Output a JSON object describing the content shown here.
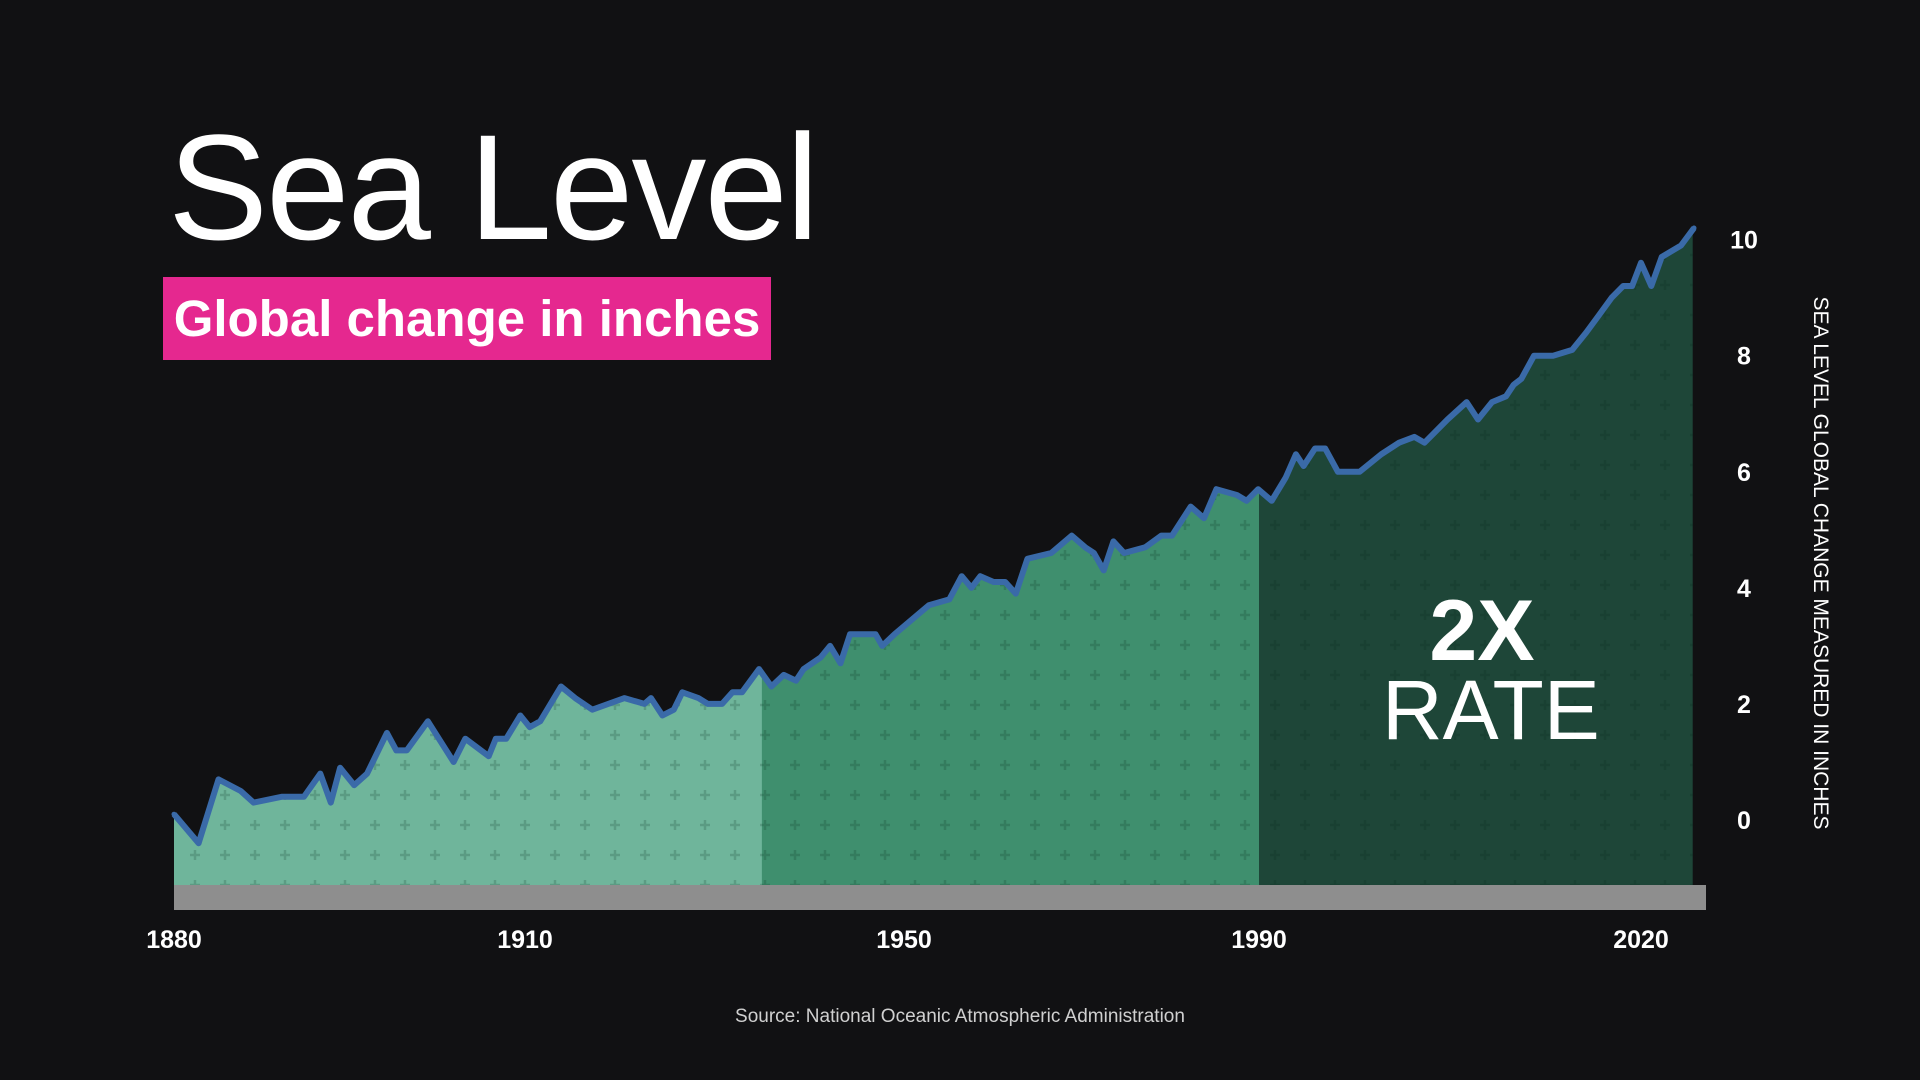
{
  "title": "Sea Level",
  "subtitle": "Global change in inches",
  "annotation": {
    "big": "2X",
    "small": "RATE"
  },
  "source": "Source: National Oceanic Atmospheric Administration",
  "colors": {
    "background": "#111113",
    "line": "#3a6aa8",
    "region_early": "#6fb59b",
    "region_mid": "#3f8f6e",
    "region_recent": "#1e4638",
    "baseline": "#8e8e8e",
    "subtitle_bg": "#e5288f"
  },
  "chart_data": {
    "type": "area",
    "title": "Sea Level",
    "subtitle": "Global change in inches",
    "ylabel": "SEA LEVEL GLOBAL CHANGE MEASURED IN INCHES",
    "xlabel": "",
    "y_axis_side": "right",
    "x_ticks": [
      1880,
      1910,
      1950,
      1990,
      2020
    ],
    "y_ticks": [
      0,
      2,
      4,
      6,
      8,
      10
    ],
    "xlim": [
      1880,
      2024
    ],
    "ylim": [
      -1.8,
      10.5
    ],
    "grid": false,
    "regions": [
      {
        "from": 1880,
        "to": 1935,
        "color": "#6fb59b"
      },
      {
        "from": 1935,
        "to": 1990,
        "color": "#3f8f6e"
      },
      {
        "from": 1990,
        "to": 2024,
        "color": "#1e4638",
        "label": "2X RATE"
      }
    ],
    "series": [
      {
        "points": [
          [
            1880.0,
            0.1
          ],
          [
            1882.1,
            -0.4
          ],
          [
            1883.8,
            0.7
          ],
          [
            1885.7,
            0.5
          ],
          [
            1886.8,
            0.3
          ],
          [
            1889.2,
            0.4
          ],
          [
            1890.2,
            0.4
          ],
          [
            1891.1,
            0.4
          ],
          [
            1892.5,
            0.8
          ],
          [
            1893.4,
            0.3
          ],
          [
            1894.2,
            0.9
          ],
          [
            1895.4,
            0.6
          ],
          [
            1896.5,
            0.8
          ],
          [
            1898.2,
            1.5
          ],
          [
            1899.0,
            1.2
          ],
          [
            1899.9,
            1.2
          ],
          [
            1901.7,
            1.7
          ],
          [
            1903.9,
            1.0
          ],
          [
            1904.9,
            1.4
          ],
          [
            1906.9,
            1.1
          ],
          [
            1907.5,
            1.4
          ],
          [
            1908.4,
            1.4
          ],
          [
            1909.6,
            1.8
          ],
          [
            1910.5,
            1.6
          ],
          [
            1911.6,
            1.7
          ],
          [
            1913.8,
            2.3
          ],
          [
            1915.3,
            2.1
          ],
          [
            1917.1,
            1.9
          ],
          [
            1920.5,
            2.1
          ],
          [
            1922.6,
            2.0
          ],
          [
            1923.3,
            2.1
          ],
          [
            1924.5,
            1.8
          ],
          [
            1925.7,
            1.9
          ],
          [
            1926.6,
            2.2
          ],
          [
            1928.3,
            2.1
          ],
          [
            1929.3,
            2.0
          ],
          [
            1930.8,
            2.0
          ],
          [
            1931.9,
            2.2
          ],
          [
            1932.9,
            2.2
          ],
          [
            1934.7,
            2.6
          ],
          [
            1936.0,
            2.3
          ],
          [
            1937.3,
            2.5
          ],
          [
            1938.6,
            2.4
          ],
          [
            1939.4,
            2.6
          ],
          [
            1941.2,
            2.8
          ],
          [
            1942.2,
            3.0
          ],
          [
            1943.3,
            2.7
          ],
          [
            1944.3,
            3.2
          ],
          [
            1947.0,
            3.2
          ],
          [
            1947.7,
            3.0
          ],
          [
            1949.0,
            3.2
          ],
          [
            1952.8,
            3.7
          ],
          [
            1955.1,
            3.8
          ],
          [
            1956.5,
            4.2
          ],
          [
            1957.6,
            4.0
          ],
          [
            1958.6,
            4.2
          ],
          [
            1960.1,
            4.1
          ],
          [
            1961.4,
            4.1
          ],
          [
            1962.6,
            3.9
          ],
          [
            1963.9,
            4.5
          ],
          [
            1966.6,
            4.6
          ],
          [
            1968.9,
            4.9
          ],
          [
            1970.4,
            4.7
          ],
          [
            1971.4,
            4.6
          ],
          [
            1972.5,
            4.3
          ],
          [
            1973.6,
            4.8
          ],
          [
            1974.8,
            4.6
          ],
          [
            1977.2,
            4.7
          ],
          [
            1979.0,
            4.9
          ],
          [
            1980.2,
            4.9
          ],
          [
            1982.3,
            5.4
          ],
          [
            1983.8,
            5.2
          ],
          [
            1985.2,
            5.7
          ],
          [
            1987.5,
            5.6
          ],
          [
            1988.6,
            5.5
          ],
          [
            1989.9,
            5.7
          ],
          [
            1991.0,
            5.5
          ],
          [
            1992.1,
            5.9
          ],
          [
            1992.9,
            6.3
          ],
          [
            1993.5,
            6.1
          ],
          [
            1994.4,
            6.4
          ],
          [
            1995.2,
            6.4
          ],
          [
            1996.2,
            6.0
          ],
          [
            1997.9,
            6.0
          ],
          [
            1999.6,
            6.3
          ],
          [
            2001.0,
            6.5
          ],
          [
            2002.2,
            6.6
          ],
          [
            2003.0,
            6.5
          ],
          [
            2004.8,
            6.9
          ],
          [
            2006.3,
            7.2
          ],
          [
            2007.2,
            6.9
          ],
          [
            2008.3,
            7.2
          ],
          [
            2009.4,
            7.3
          ],
          [
            2010.0,
            7.5
          ],
          [
            2010.6,
            7.6
          ],
          [
            2011.6,
            8.0
          ],
          [
            2013.1,
            8.0
          ],
          [
            2014.6,
            8.1
          ],
          [
            2015.7,
            8.4
          ],
          [
            2016.7,
            8.7
          ],
          [
            2017.7,
            9.0
          ],
          [
            2018.6,
            9.2
          ],
          [
            2019.3,
            9.2
          ],
          [
            2020.0,
            9.6
          ],
          [
            2020.8,
            9.2
          ],
          [
            2021.6,
            9.7
          ],
          [
            2023.1,
            9.9
          ],
          [
            2024.1,
            10.2
          ]
        ]
      }
    ]
  }
}
